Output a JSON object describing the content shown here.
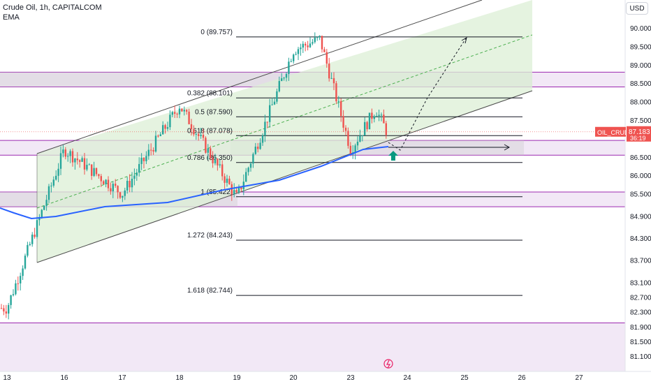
{
  "header": {
    "title": "Crude Oil, 1h, CAPITALCOM",
    "indicator": "EMA"
  },
  "currency_button": "USD",
  "price_tag": {
    "symbol": "OIL_CRUDE",
    "price": "87.183",
    "countdown": "36:19",
    "value": 87.183
  },
  "colors": {
    "up": "#26a69a",
    "down": "#ef5350",
    "ema": "#2962ff",
    "channel_fill": "#dcefd6",
    "zone_fill": "#f0e4f5",
    "zone_border": "#9c27b0",
    "price_tag_bg": "#ef5350",
    "arrow": "#089981"
  },
  "chart_data": {
    "type": "candlestick",
    "title": "Crude Oil, 1h, CAPITALCOM",
    "ylim": [
      80.6,
      90.4
    ],
    "y_ticks": [
      90.0,
      89.5,
      89.0,
      88.5,
      88.0,
      87.5,
      87.0,
      86.5,
      86.0,
      85.5,
      84.9,
      84.3,
      83.7,
      83.1,
      82.7,
      82.3,
      81.9,
      81.5,
      81.1
    ],
    "y_tick_labels": [
      "90.000",
      "89.500",
      "89.000",
      "88.500",
      "88.000",
      "87.500",
      "87.000",
      "86.500",
      "86.000",
      "85.500",
      "84.900",
      "84.300",
      "83.700",
      "83.100",
      "82.700",
      "82.300",
      "81.900",
      "81.500",
      "81.100"
    ],
    "x_ticks": [
      "13",
      "16",
      "17",
      "18",
      "19",
      "20",
      "23",
      "24",
      "25",
      "26",
      "27"
    ],
    "price_anchors": [
      {
        "day": "13",
        "close": 82.4
      },
      {
        "day": "16",
        "close": 86.7
      },
      {
        "day": "17",
        "close": 85.5
      },
      {
        "day": "18",
        "close": 87.9
      },
      {
        "day": "19",
        "close": 85.4
      },
      {
        "day": "20",
        "close": 89.4
      },
      {
        "day": "20.5",
        "close": 89.7
      },
      {
        "day": "23",
        "close": 86.7
      },
      {
        "day": "23.5",
        "close": 87.8
      },
      {
        "day": "23.7",
        "close": 87.1
      }
    ],
    "fib_levels": [
      {
        "label": "0 (89.757)",
        "value": 89.757
      },
      {
        "label": "0.382 (88.101)",
        "value": 88.101
      },
      {
        "label": "0.5 (87.590)",
        "value": 87.59
      },
      {
        "label": "0.618 (87.078)",
        "value": 87.078
      },
      {
        "label": "0.786 (86.350)",
        "value": 86.35
      },
      {
        "label": "1 (85.422)",
        "value": 85.422
      },
      {
        "label": "1.272 (84.243)",
        "value": 84.243
      },
      {
        "label": "1.618 (82.744)",
        "value": 82.744
      }
    ],
    "zones": [
      {
        "from": 88.4,
        "to": 88.8
      },
      {
        "from": 86.55,
        "to": 86.95
      },
      {
        "from": 85.15,
        "to": 85.55
      },
      {
        "from": 80.6,
        "to": 82.0
      }
    ]
  }
}
